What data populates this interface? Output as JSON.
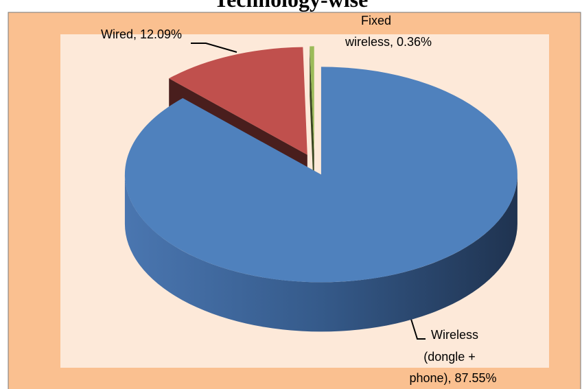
{
  "chart_data": {
    "type": "pie3d",
    "title": "Technology-wise",
    "values": [
      87.55,
      12.09,
      0.36
    ],
    "value_labels": [
      [
        "Wireless",
        "(dongle +",
        "phone), 87.55%"
      ],
      [
        "Wired, 12.09%"
      ],
      [
        "Fixed",
        "wireless, 0.36%"
      ]
    ],
    "colors": [
      "#4f81bd",
      "#c0504d",
      "#9bbb59"
    ]
  }
}
